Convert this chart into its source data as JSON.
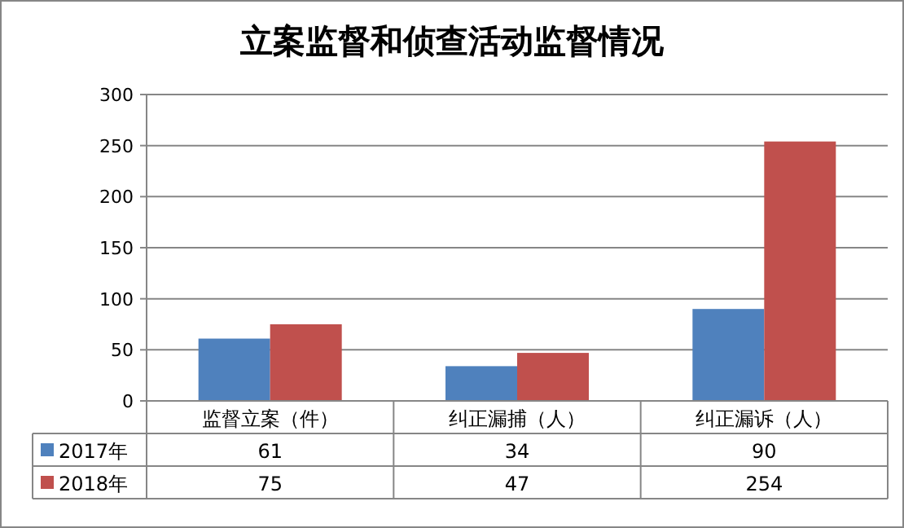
{
  "chart_data": {
    "type": "bar",
    "title": "立案监督和侦查活动监督情况",
    "categories": [
      "监督立案（件）",
      "纠正漏捕（人）",
      "纠正漏诉（人）"
    ],
    "series": [
      {
        "name": "2017年",
        "color": "#4f81bd",
        "values": [
          61,
          34,
          90
        ]
      },
      {
        "name": "2018年",
        "color": "#c0504d",
        "values": [
          75,
          47,
          254
        ]
      }
    ],
    "ylim": [
      0,
      300
    ],
    "yticks": [
      0,
      50,
      100,
      150,
      200,
      250,
      300
    ],
    "grid": "y",
    "data_labels": true,
    "legend": "bottom"
  }
}
